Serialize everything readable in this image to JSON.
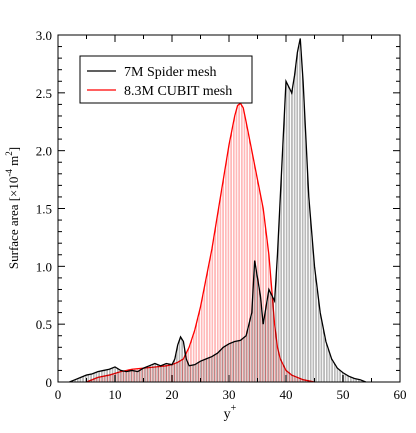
{
  "chart_data": {
    "type": "area",
    "title": "",
    "xlabel": "y",
    "xlabel_superscript": "+",
    "ylabel": "Surface area [×10",
    "ylabel_exponent": "-4",
    "ylabel_unit": " m",
    "ylabel_unit_exponent": "2",
    "ylabel_close": "]",
    "xlim": [
      0,
      60
    ],
    "ylim": [
      0,
      3.0
    ],
    "x_ticks": [
      "0",
      "10",
      "20",
      "30",
      "40",
      "50",
      "60"
    ],
    "y_ticks": [
      "0",
      "0.5",
      "1.0",
      "1.5",
      "2.0",
      "2.5",
      "3.0"
    ],
    "grid": false,
    "legend_position": "top-left",
    "series": [
      {
        "name": "7M Spider mesh",
        "color": "#000000",
        "style": "histogram",
        "points": [
          [
            2,
            0
          ],
          [
            3,
            0.02
          ],
          [
            4,
            0.04
          ],
          [
            5,
            0.06
          ],
          [
            6,
            0.07
          ],
          [
            7,
            0.09
          ],
          [
            8,
            0.1
          ],
          [
            9,
            0.11
          ],
          [
            10,
            0.13
          ],
          [
            11,
            0.1
          ],
          [
            12,
            0.09
          ],
          [
            13,
            0.1
          ],
          [
            14,
            0.09
          ],
          [
            15,
            0.12
          ],
          [
            16,
            0.14
          ],
          [
            17,
            0.16
          ],
          [
            18,
            0.14
          ],
          [
            19,
            0.16
          ],
          [
            20,
            0.15
          ],
          [
            20.5,
            0.2
          ],
          [
            21,
            0.32
          ],
          [
            21.5,
            0.39
          ],
          [
            22,
            0.35
          ],
          [
            22.5,
            0.2
          ],
          [
            23,
            0.14
          ],
          [
            24,
            0.15
          ],
          [
            25,
            0.18
          ],
          [
            26,
            0.2
          ],
          [
            27,
            0.22
          ],
          [
            28,
            0.25
          ],
          [
            29,
            0.3
          ],
          [
            30,
            0.33
          ],
          [
            31,
            0.35
          ],
          [
            32,
            0.36
          ],
          [
            33,
            0.4
          ],
          [
            33.5,
            0.5
          ],
          [
            34,
            0.6
          ],
          [
            34.5,
            1.05
          ],
          [
            35,
            0.9
          ],
          [
            35.5,
            0.75
          ],
          [
            36,
            0.5
          ],
          [
            36.5,
            0.65
          ],
          [
            37,
            0.8
          ],
          [
            37.5,
            0.75
          ],
          [
            38,
            0.7
          ],
          [
            38.5,
            1.1
          ],
          [
            39,
            1.6
          ],
          [
            39.5,
            2.1
          ],
          [
            40,
            2.6
          ],
          [
            40.5,
            2.55
          ],
          [
            41,
            2.5
          ],
          [
            41.5,
            2.65
          ],
          [
            42,
            2.85
          ],
          [
            42.5,
            2.97
          ],
          [
            43,
            2.6
          ],
          [
            43.5,
            2.1
          ],
          [
            44,
            1.6
          ],
          [
            45,
            1.0
          ],
          [
            46,
            0.6
          ],
          [
            47,
            0.35
          ],
          [
            48,
            0.2
          ],
          [
            49,
            0.12
          ],
          [
            50,
            0.08
          ],
          [
            51,
            0.05
          ],
          [
            52,
            0.03
          ],
          [
            53,
            0.02
          ],
          [
            54,
            0
          ]
        ]
      },
      {
        "name": "8.3M CUBIT mesh",
        "color": "#ff0000",
        "style": "histogram",
        "points": [
          [
            5,
            0
          ],
          [
            7,
            0.04
          ],
          [
            9,
            0.06
          ],
          [
            11,
            0.09
          ],
          [
            13,
            0.11
          ],
          [
            15,
            0.12
          ],
          [
            17,
            0.13
          ],
          [
            19,
            0.14
          ],
          [
            20,
            0.15
          ],
          [
            21,
            0.17
          ],
          [
            22,
            0.2
          ],
          [
            23,
            0.3
          ],
          [
            24,
            0.45
          ],
          [
            25,
            0.65
          ],
          [
            26,
            0.9
          ],
          [
            27,
            1.15
          ],
          [
            28,
            1.45
          ],
          [
            29,
            1.75
          ],
          [
            30,
            2.05
          ],
          [
            31,
            2.3
          ],
          [
            31.5,
            2.39
          ],
          [
            32,
            2.41
          ],
          [
            32.5,
            2.37
          ],
          [
            33,
            2.25
          ],
          [
            34,
            2.0
          ],
          [
            35,
            1.75
          ],
          [
            36,
            1.5
          ],
          [
            37,
            1.1
          ],
          [
            37.5,
            0.8
          ],
          [
            38,
            0.5
          ],
          [
            38.5,
            0.3
          ],
          [
            39,
            0.2
          ],
          [
            40,
            0.1
          ],
          [
            41,
            0.06
          ],
          [
            43,
            0.02
          ],
          [
            45,
            0
          ]
        ]
      }
    ]
  }
}
